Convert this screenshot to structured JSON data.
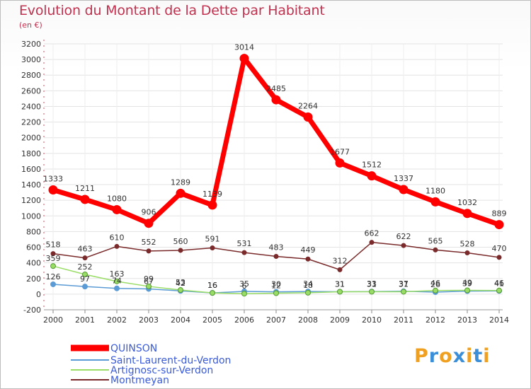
{
  "title": "Evolution du Montant de la Dette par Habitant",
  "subtitle": "(en €)",
  "logo": {
    "letters": [
      "P",
      "r",
      "o",
      "x",
      "i",
      "t",
      "i"
    ],
    "colors": [
      "#f0a020",
      "#3a8fd8",
      "#f0a020",
      "#3a8fd8",
      "#f0a020",
      "#3a8fd8",
      "#f0a020"
    ]
  },
  "chart_data": {
    "type": "line",
    "title": "Evolution du Montant de la Dette par Habitant",
    "ylabel": "(en €)",
    "xlabel": "",
    "x": [
      2000,
      2001,
      2002,
      2003,
      2004,
      2005,
      2006,
      2007,
      2008,
      2009,
      2010,
      2011,
      2012,
      2013,
      2014
    ],
    "ylim": [
      -200,
      3200
    ],
    "yticks": [
      -200,
      0,
      200,
      400,
      600,
      800,
      1000,
      1200,
      1400,
      1600,
      1800,
      2000,
      2200,
      2400,
      2600,
      2800,
      3000,
      3200
    ],
    "legend_position": "bottom-left",
    "series": [
      {
        "name": "QUINSON",
        "color": "#ff0000",
        "values": [
          1333,
          1211,
          1080,
          906,
          1289,
          1139,
          3014,
          2485,
          2264,
          1677,
          1512,
          1337,
          1180,
          1032,
          889
        ],
        "labels": [
          "1333",
          "1211",
          "1080",
          "906",
          "1289",
          "1139",
          "3014",
          "2485",
          "2264",
          "1677",
          "1512",
          "1337",
          "1180",
          "1032",
          "889"
        ]
      },
      {
        "name": "Saint-Laurent-du-Verdon",
        "color": "#5b9bd5",
        "values": [
          126,
          97,
          74,
          67,
          42,
          16,
          35,
          30,
          34,
          31,
          33,
          37,
          26,
          39,
          41
        ],
        "labels": [
          "126",
          "97",
          "74",
          "67",
          "42",
          "16",
          "35",
          "30",
          "34",
          "31",
          "33",
          "37",
          "26",
          "39",
          "41"
        ]
      },
      {
        "name": "Artignosc-sur-Verdon",
        "color": "#99dd66",
        "values": [
          359,
          252,
          163,
          99,
          53,
          16,
          6,
          12,
          18,
          31,
          31,
          31,
          46,
          49,
          46
        ],
        "labels": [
          "359",
          "252",
          "163",
          "99",
          "53",
          "16",
          "6",
          "12",
          "18",
          "31",
          "31",
          "31",
          "46",
          "49",
          "46"
        ]
      },
      {
        "name": "Montmeyan",
        "color": "#7a2a2a",
        "values": [
          518,
          463,
          610,
          552,
          560,
          591,
          531,
          483,
          449,
          312,
          662,
          622,
          565,
          528,
          470
        ],
        "labels": [
          "518",
          "463",
          "610",
          "552",
          "560",
          "591",
          "531",
          "483",
          "449",
          "312",
          "662",
          "622",
          "565",
          "528",
          "470"
        ]
      }
    ]
  }
}
